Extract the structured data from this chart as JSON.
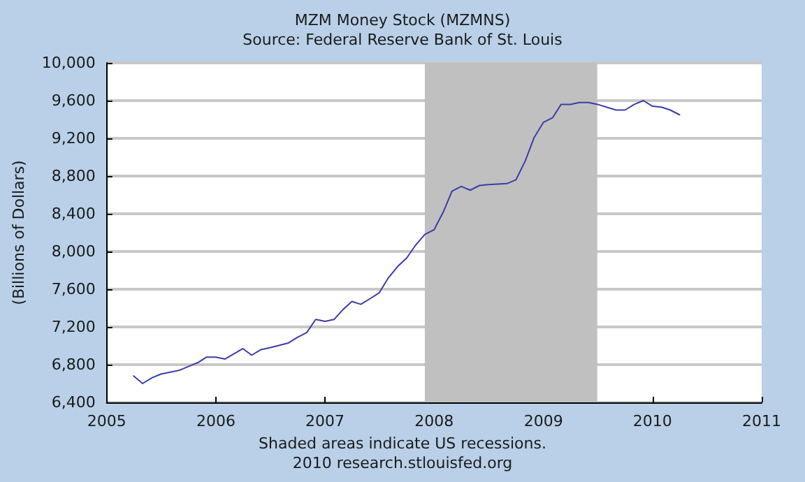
{
  "chart_data": {
    "type": "line",
    "title": "MZM Money Stock (MZMNS)",
    "subtitle": "Source: Federal Reserve Bank of St. Louis",
    "ylabel": "(Billions of Dollars)",
    "annotations": [
      "Shaded areas indicate US recessions.",
      "2010 research.stlouisfed.org"
    ],
    "x": [
      "2005-04",
      "2005-05",
      "2005-06",
      "2005-07",
      "2005-09",
      "2005-10",
      "2005-11",
      "2005-12",
      "2006-01",
      "2006-02",
      "2006-04",
      "2006-05",
      "2006-06",
      "2006-07",
      "2006-09",
      "2006-10",
      "2006-11",
      "2006-12",
      "2007-01",
      "2007-02",
      "2007-03",
      "2007-04",
      "2007-05",
      "2007-06",
      "2007-07",
      "2007-08",
      "2007-09",
      "2007-10",
      "2007-11",
      "2007-12",
      "2008-01",
      "2008-02",
      "2008-03",
      "2008-04",
      "2008-05",
      "2008-06",
      "2008-07",
      "2008-09",
      "2008-10",
      "2008-11",
      "2008-12",
      "2009-01",
      "2009-02",
      "2009-03",
      "2009-04",
      "2009-05",
      "2009-06",
      "2009-07",
      "2009-08",
      "2009-09",
      "2009-10",
      "2009-11",
      "2009-12",
      "2010-01",
      "2010-02",
      "2010-03",
      "2010-04"
    ],
    "series": [
      {
        "color": "#3c3ca8",
        "values": [
          6680,
          6600,
          6660,
          6700,
          6740,
          6780,
          6820,
          6880,
          6880,
          6860,
          6970,
          6900,
          6960,
          6980,
          7030,
          7090,
          7140,
          7280,
          7260,
          7280,
          7380,
          7470,
          7440,
          7500,
          7560,
          7720,
          7840,
          7930,
          8070,
          8180,
          8230,
          8420,
          8640,
          8690,
          8650,
          8700,
          8710,
          8720,
          8760,
          8960,
          9210,
          9370,
          9420,
          9560,
          9560,
          9580,
          9580,
          9560,
          9530,
          9500,
          9500,
          9560,
          9600,
          9540,
          9530,
          9500,
          9450
        ]
      }
    ],
    "xlim": [
      "2005",
      "2011"
    ],
    "xticks": [
      "2005",
      "2006",
      "2007",
      "2008",
      "2009",
      "2010",
      "2011"
    ],
    "ylim": [
      6400,
      10000
    ],
    "yticks": [
      {
        "value": 6400,
        "label": "6,400"
      },
      {
        "value": 6800,
        "label": "6,800"
      },
      {
        "value": 7200,
        "label": "7,200"
      },
      {
        "value": 7600,
        "label": "7,600"
      },
      {
        "value": 8000,
        "label": "8,000"
      },
      {
        "value": 8400,
        "label": "8,400"
      },
      {
        "value": 8800,
        "label": "8,800"
      },
      {
        "value": 9200,
        "label": "9,200"
      },
      {
        "value": 9600,
        "label": "9,600"
      },
      {
        "value": 10000,
        "label": "10,000"
      }
    ],
    "bands": [
      {
        "axis": "x",
        "from": "2007-12",
        "to": "2009-06-30",
        "color": "#c0c0c0"
      }
    ],
    "grid": "y",
    "marker": "none",
    "line_style": "solid"
  }
}
